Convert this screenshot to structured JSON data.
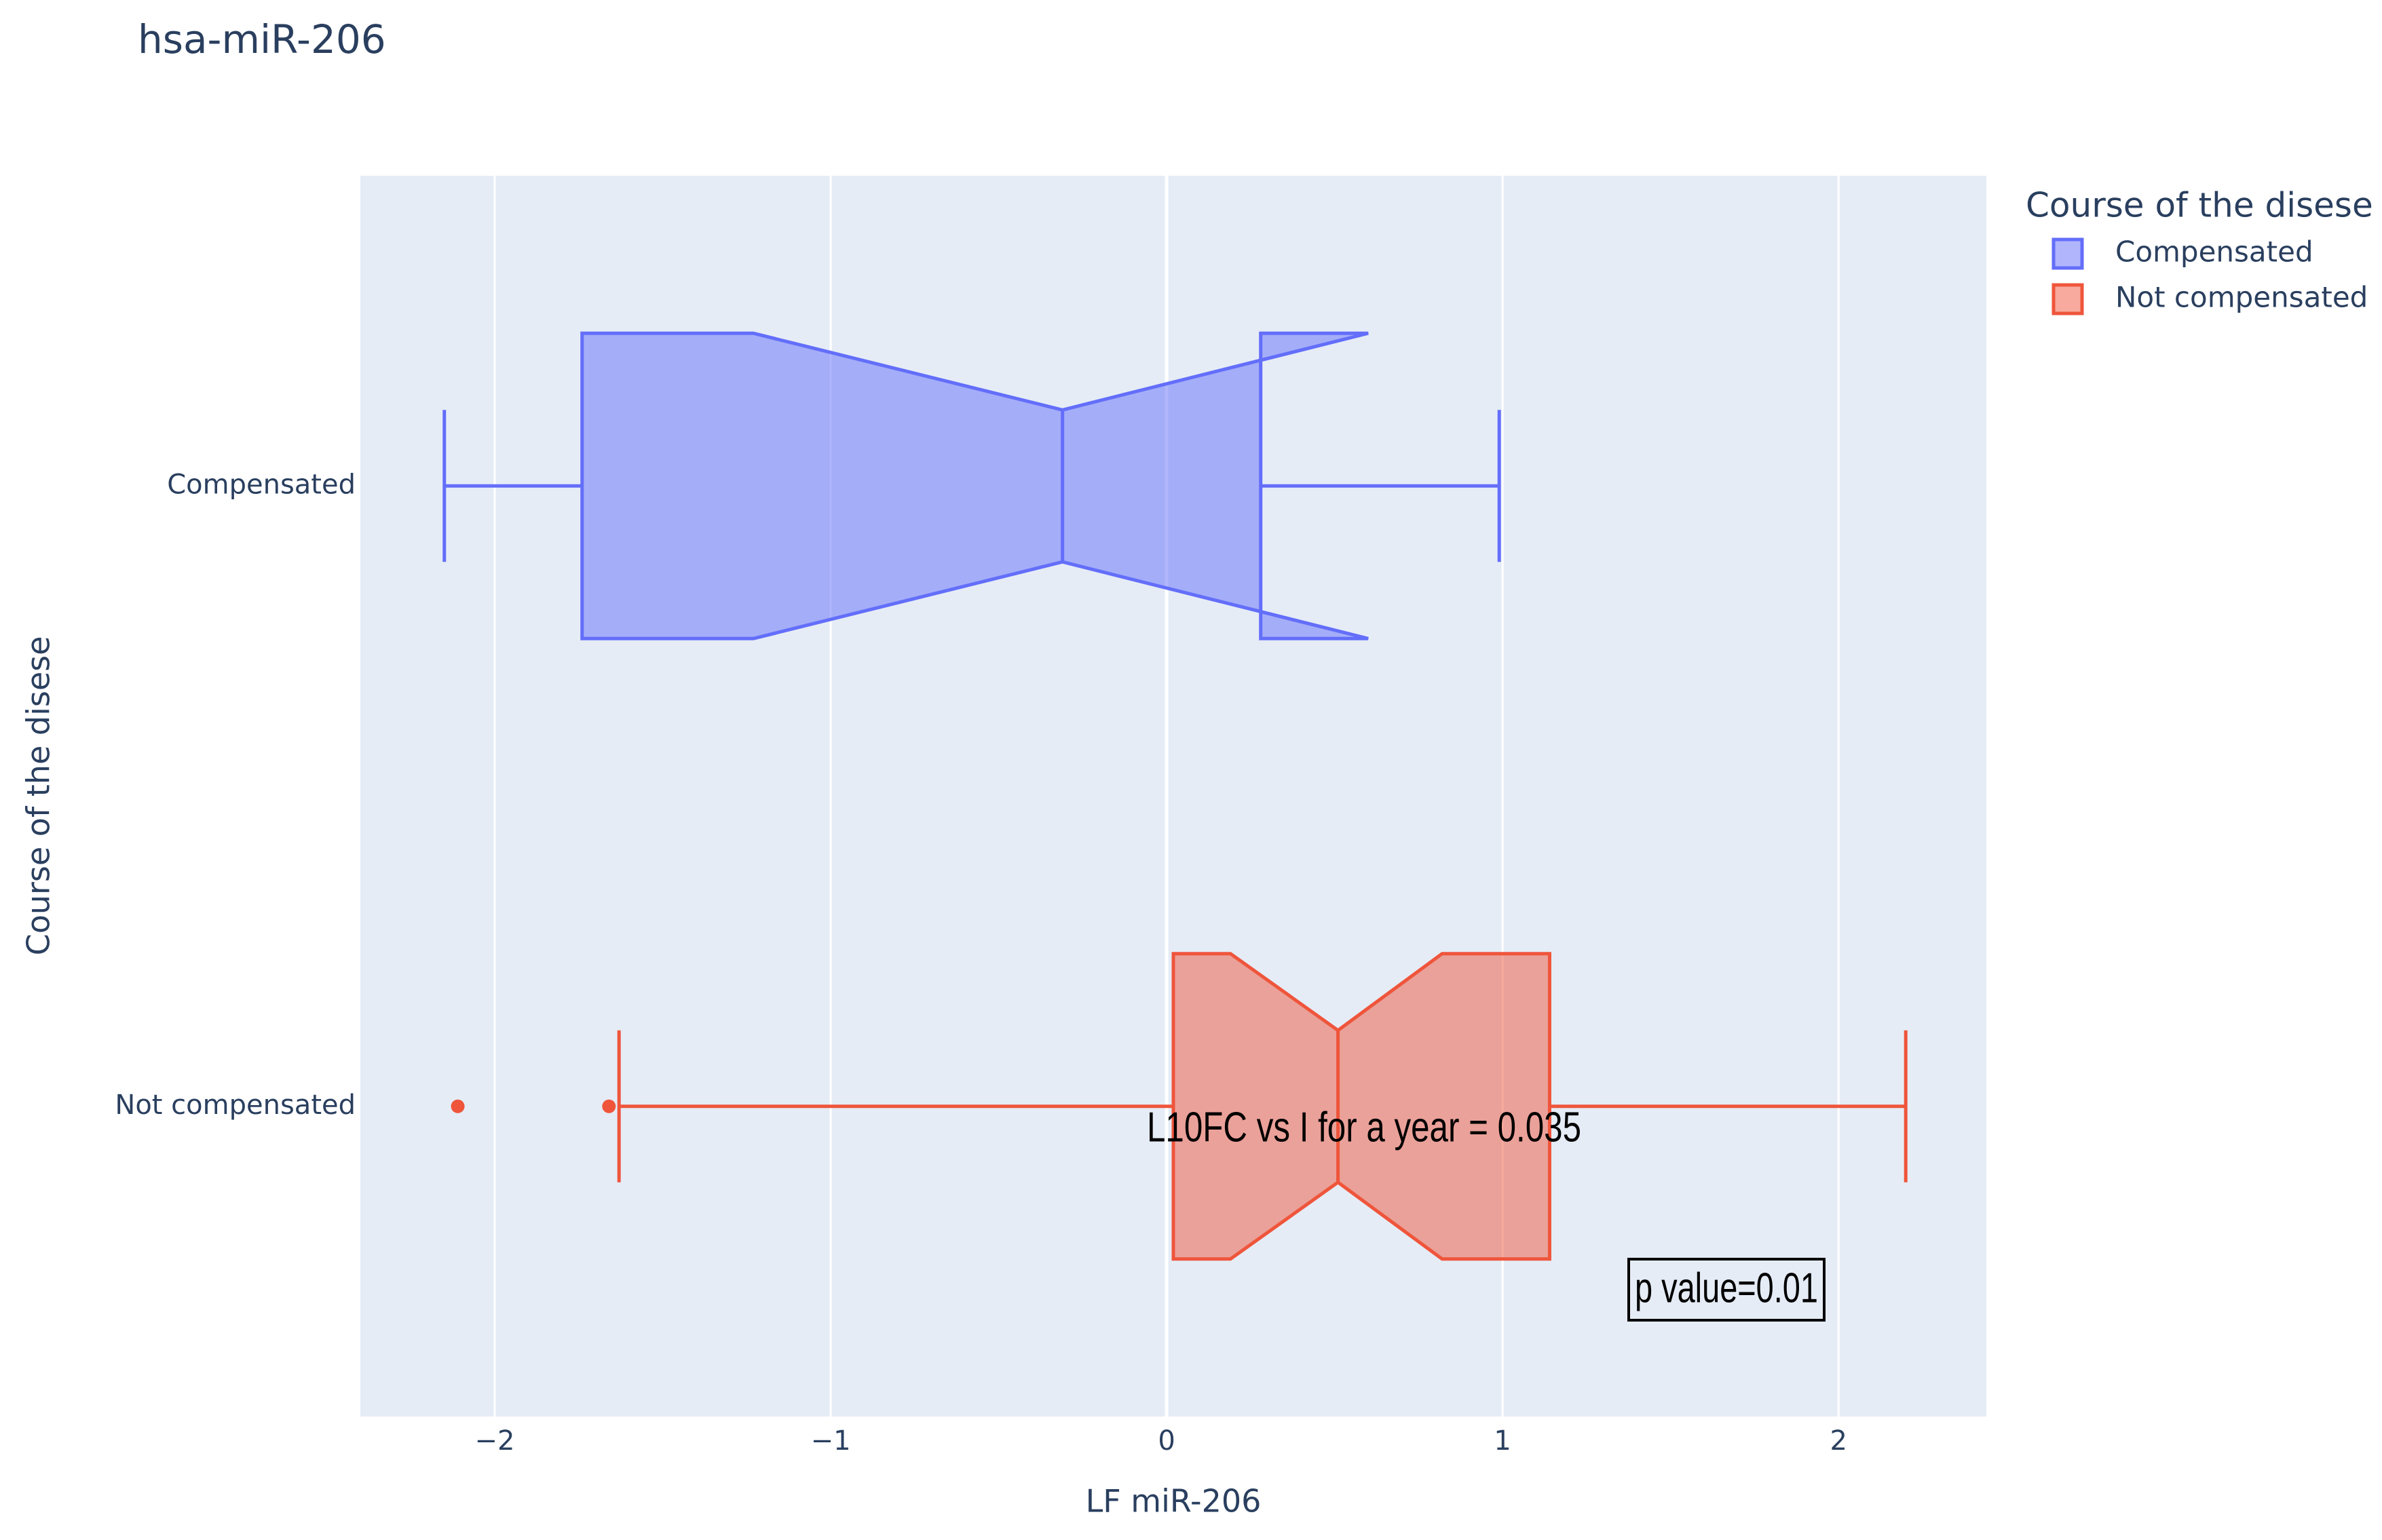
{
  "chart_data": {
    "type": "box",
    "orientation": "horizontal",
    "notched": true,
    "title": "hsa-miR-206",
    "x_label": "LF miR-206",
    "y_label": "Course of the disese",
    "legend_title": "Course of the disese",
    "legend_position": "right",
    "grid": true,
    "categories": [
      "Compensated",
      "Not compensated"
    ],
    "xlim": [
      -2.4,
      2.44
    ],
    "xticks": [
      {
        "value": -2,
        "label": "−2"
      },
      {
        "value": -1,
        "label": "−1"
      },
      0,
      1,
      2
    ],
    "series": [
      {
        "name": "Compensated",
        "color": "#636efa",
        "lower_fence": -2.15,
        "q1": -1.74,
        "notch_low": -1.23,
        "median": -0.31,
        "notch_high": 0.6,
        "q3": 0.28,
        "upper_fence": 0.99,
        "outliers": []
      },
      {
        "name": "Not compensated",
        "color": "#ef553b",
        "lower_fence": -1.63,
        "q1": 0.02,
        "notch_low": 0.19,
        "median": 0.51,
        "notch_high": 0.82,
        "q3": 1.14,
        "upper_fence": 2.2,
        "outliers": [
          -2.11,
          -1.66
        ]
      }
    ],
    "annotations": [
      "L10FC vs I for a year = 0.035",
      "p value=0.01"
    ]
  }
}
